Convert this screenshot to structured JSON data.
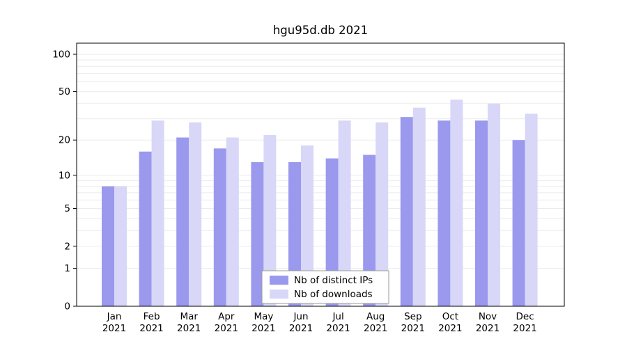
{
  "title": "hgu95d.db 2021",
  "colors": {
    "ips_bar": "#9a99ee",
    "downloads_bar": "#d8d7f8",
    "grid": "#ebebeb",
    "axis": "#000000",
    "legend_border": "#9a9a9a",
    "background": "#ffffff"
  },
  "chart_data": {
    "type": "bar",
    "title": "hgu95d.db 2021",
    "year": "2021",
    "categories": [
      "Jan",
      "Feb",
      "Mar",
      "Apr",
      "May",
      "Jun",
      "Jul",
      "Aug",
      "Sep",
      "Oct",
      "Nov",
      "Dec"
    ],
    "series": [
      {
        "name": "Nb of distinct IPs",
        "color": "#9a99ee",
        "values": [
          8,
          16,
          21,
          17,
          13,
          13,
          14,
          15,
          31,
          29,
          29,
          20
        ]
      },
      {
        "name": "Nb of downloads",
        "color": "#d8d7f8",
        "values": [
          8,
          29,
          28,
          21,
          22,
          18,
          29,
          28,
          37,
          43,
          40,
          33
        ]
      }
    ],
    "yticks": [
      0,
      1,
      2,
      5,
      10,
      20,
      50,
      100
    ],
    "gridlines": [
      1,
      2,
      3,
      4,
      5,
      6,
      7,
      8,
      9,
      10,
      20,
      30,
      40,
      50,
      60,
      70,
      80,
      90,
      100
    ],
    "ylim": [
      0,
      100
    ],
    "scale": "log1p",
    "grid": true,
    "legend_position": "bottom-center",
    "xlabel": "",
    "ylabel": ""
  }
}
